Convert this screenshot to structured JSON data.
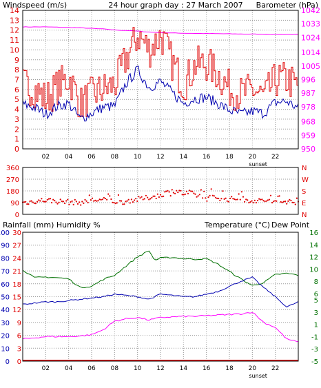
{
  "colors": {
    "wind": "#e00000",
    "gust": "#0000b0",
    "pressure": "#ff00ff",
    "direction": "#e00000",
    "temperature": "#007000",
    "humidity": "#0000b0",
    "dewpoint": "#ff00ff",
    "rain": "#e00000",
    "frame": "#000000",
    "grid": "#9a9a9a"
  },
  "chart_data": [
    {
      "type": "line",
      "title": "24 hour graph day : 27 March 2007",
      "left_axis_label": "Windspeed (m/s)",
      "right_axis_label": "Barometer (hPa)",
      "left_ticks": [
        "0",
        "1",
        "2",
        "3",
        "4",
        "5",
        "6",
        "7",
        "8",
        "9",
        "10",
        "11",
        "12",
        "13",
        "14"
      ],
      "right_ticks": [
        "950",
        "959",
        "968",
        "978",
        "987",
        "996",
        "1005",
        "1014",
        "1024",
        "1033",
        "1042"
      ],
      "x_ticks": [
        "02",
        "04",
        "06",
        "08",
        "10",
        "12",
        "14",
        "16",
        "18",
        "20",
        "22"
      ],
      "sunset_label": "sunset",
      "ylim_left": [
        0,
        14
      ],
      "ylim_right": [
        950,
        1042
      ],
      "x_range_hours": [
        0,
        24
      ],
      "grid": true,
      "series": [
        {
          "key": "wind",
          "x": [
            0,
            1,
            2,
            3,
            4,
            5,
            6,
            7,
            8,
            9,
            10,
            11,
            12,
            13,
            14,
            15,
            16,
            17,
            18,
            19,
            20,
            21,
            22,
            23,
            24
          ],
          "values": [
            4.5,
            4.2,
            3.5,
            4.3,
            4.6,
            3.0,
            3.6,
            4.2,
            4.3,
            6.6,
            8.0,
            6.2,
            6.8,
            5.7,
            4.6,
            5.1,
            5.2,
            4.6,
            3.9,
            3.5,
            3.8,
            3.6,
            4.7,
            4.8,
            4.1
          ]
        },
        {
          "key": "gust",
          "x": [
            0,
            1,
            2,
            3,
            4,
            5,
            6,
            7,
            8,
            9,
            10,
            11,
            12,
            13,
            14,
            15,
            16,
            17,
            18,
            19,
            20,
            21,
            22,
            23,
            24
          ],
          "values": [
            6.5,
            6.0,
            5.0,
            6.3,
            7.2,
            4.5,
            5.5,
            6.0,
            6.5,
            9.2,
            11.5,
            10.0,
            11.5,
            8.6,
            6.5,
            8.5,
            8.6,
            7.5,
            6.0,
            5.5,
            6.0,
            5.2,
            7.0,
            7.0,
            6.2
          ]
        },
        {
          "key": "pressure",
          "x": [
            0,
            1,
            2,
            3,
            4,
            5,
            6,
            7,
            8,
            9,
            10,
            11,
            12,
            13,
            14,
            15,
            16,
            17,
            18,
            19,
            20,
            21,
            22,
            23,
            24
          ],
          "values": [
            1031,
            1031,
            1031,
            1030.8,
            1030.6,
            1030.4,
            1030,
            1029.6,
            1029,
            1028.6,
            1028.2,
            1027.6,
            1027.2,
            1027,
            1026.8,
            1026.7,
            1026.6,
            1026.5,
            1026.4,
            1026.3,
            1026.2,
            1026.1,
            1026,
            1026,
            1025.9
          ]
        }
      ]
    },
    {
      "type": "scatter",
      "left_ticks": [
        "360",
        "270",
        "180",
        "90",
        "0"
      ],
      "right_ticks": [
        "N",
        "W",
        "S",
        "E",
        "N"
      ],
      "ylim": [
        0,
        360
      ],
      "x_range_hours": [
        0,
        24
      ],
      "series": [
        {
          "key": "direction",
          "x": [
            0.2,
            1,
            2,
            3,
            4,
            5,
            5.5,
            6,
            7,
            8,
            8.5,
            9,
            9.5,
            10,
            10.5,
            11,
            11.5,
            12,
            12.5,
            13,
            13.5,
            14,
            14.5,
            15,
            15.5,
            16,
            16.5,
            17,
            17.5,
            18,
            18.5,
            19,
            19.5,
            20,
            20.5,
            21,
            21.5,
            22,
            22.5,
            23,
            23.5
          ],
          "values": [
            90,
            100,
            110,
            100,
            95,
            90,
            95,
            110,
            110,
            100,
            90,
            100,
            110,
            115,
            120,
            130,
            140,
            145,
            170,
            160,
            180,
            155,
            165,
            150,
            140,
            120,
            135,
            130,
            120,
            115,
            120,
            125,
            105,
            110,
            100,
            110,
            100,
            90,
            95,
            100,
            95
          ]
        }
      ]
    },
    {
      "type": "line",
      "left_axis_label": "Rainfall (mm)  Humidity %",
      "right_axis_label": "Temperature (°C)",
      "right_axis_label2": "Dew Point",
      "humidity_ticks": [
        "0",
        "10",
        "20",
        "30",
        "40",
        "50",
        "60",
        "70",
        "80",
        "90",
        "100"
      ],
      "rain_ticks": [
        "0",
        "3",
        "6",
        "9",
        "12",
        "15",
        "18",
        "21",
        "24",
        "27",
        "30"
      ],
      "right_ticks": [
        "-5",
        "-3",
        "-1",
        "1",
        "3",
        "5",
        "6",
        "8",
        "10",
        "12",
        "14",
        "16"
      ],
      "x_ticks": [
        "02",
        "04",
        "06",
        "08",
        "10",
        "12",
        "14",
        "16",
        "18",
        "20",
        "22"
      ],
      "sunset_label": "sunset",
      "ylim_left": [
        0,
        100
      ],
      "ylim_right": [
        -5,
        16
      ],
      "x_range_hours": [
        0,
        24
      ],
      "grid": true,
      "series": [
        {
          "key": "temperature",
          "x": [
            0,
            1,
            2,
            3,
            4,
            5,
            6,
            7,
            8,
            9,
            10,
            11,
            11.5,
            12,
            13,
            14,
            15,
            16,
            17,
            18,
            19,
            20,
            21,
            22,
            23,
            24
          ],
          "values": [
            9.9,
            8.6,
            8.7,
            8.6,
            8.4,
            7.0,
            7.2,
            8.3,
            9.0,
            10.5,
            12.0,
            13.0,
            11.4,
            11.8,
            11.9,
            11.7,
            11.6,
            11.7,
            10.8,
            9.6,
            8.4,
            7.3,
            7.8,
            9.1,
            9.3,
            9.0
          ]
        },
        {
          "key": "humidity",
          "x": [
            0,
            1,
            2,
            3,
            4,
            5,
            6,
            7,
            8,
            9,
            10,
            11,
            12,
            13,
            14,
            15,
            16,
            17,
            18,
            19,
            20,
            21,
            22,
            23,
            24
          ],
          "values": [
            44,
            45,
            46,
            46,
            47,
            48,
            49,
            50,
            52,
            51,
            50,
            48,
            52,
            51,
            50,
            50,
            52,
            54,
            58,
            62,
            65,
            57,
            50,
            42,
            46
          ]
        },
        {
          "key": "dewpoint",
          "x": [
            0,
            1,
            2,
            3,
            4,
            5,
            6,
            7,
            8,
            9,
            10,
            11,
            12,
            13,
            14,
            15,
            16,
            17,
            18,
            19,
            20,
            21,
            22,
            23,
            24
          ],
          "values": [
            -1.4,
            -1.2,
            -1.0,
            -1.0,
            -1.0,
            -0.9,
            -0.7,
            0.1,
            1.5,
            1.9,
            2.1,
            1.7,
            2.1,
            2.2,
            2.3,
            2.3,
            2.4,
            2.5,
            2.6,
            2.7,
            3.0,
            1.3,
            0.5,
            -1.4,
            -1.9
          ]
        },
        {
          "key": "rain",
          "x": [
            0,
            24
          ],
          "values": [
            0,
            0
          ]
        }
      ]
    }
  ]
}
